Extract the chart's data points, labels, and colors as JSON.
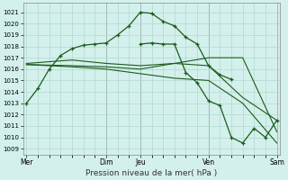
{
  "xlabel": "Pression niveau de la mer( hPa )",
  "bg_color": "#d4f0ec",
  "grid_color": "#b0d8d0",
  "line_color": "#1a5c1a",
  "yticks": [
    1009,
    1010,
    1011,
    1012,
    1013,
    1014,
    1015,
    1016,
    1017,
    1018,
    1019,
    1020,
    1021
  ],
  "ylim": [
    1008.5,
    1021.8
  ],
  "xlim": [
    -0.3,
    22.3
  ],
  "xtick_labels": [
    "Mer",
    "Dim",
    "Jeu",
    "Ven",
    "Sam"
  ],
  "xtick_positions": [
    0,
    7,
    10,
    16,
    22
  ],
  "vlines": [
    7,
    10,
    16,
    22
  ],
  "series": [
    {
      "x": [
        0,
        1,
        2,
        3,
        4,
        5,
        6,
        7,
        8,
        9,
        10,
        11,
        12,
        13,
        14,
        15,
        16,
        17,
        18
      ],
      "y": [
        1013.0,
        1014.3,
        1016.0,
        1017.2,
        1017.8,
        1018.1,
        1018.2,
        1018.3,
        1019.0,
        1019.8,
        1021.0,
        1020.9,
        1020.2,
        1019.8,
        1018.8,
        1018.2,
        1016.3,
        1015.5,
        1015.1
      ],
      "marker": "+"
    },
    {
      "x": [
        0,
        4,
        7,
        10,
        13,
        16,
        19,
        22
      ],
      "y": [
        1016.4,
        1016.3,
        1016.2,
        1016.0,
        1016.5,
        1017.0,
        1017.0,
        1010.5
      ],
      "marker": null
    },
    {
      "x": [
        0,
        4,
        7,
        10,
        13,
        16,
        19,
        22
      ],
      "y": [
        1016.4,
        1016.2,
        1016.0,
        1015.6,
        1015.2,
        1015.0,
        1013.0,
        1009.5
      ],
      "marker": null
    },
    {
      "x": [
        0,
        4,
        7,
        10,
        13,
        16,
        19,
        22
      ],
      "y": [
        1016.5,
        1016.8,
        1016.5,
        1016.3,
        1016.5,
        1016.3,
        1013.5,
        1011.5
      ],
      "marker": null
    },
    {
      "x": [
        10,
        11,
        12,
        13,
        14,
        15,
        16,
        17,
        18,
        19,
        20,
        21,
        22
      ],
      "y": [
        1018.2,
        1018.3,
        1018.2,
        1018.2,
        1015.7,
        1014.8,
        1013.2,
        1012.8,
        1010.0,
        1009.5,
        1010.8,
        1010.0,
        1011.5
      ],
      "marker": "+"
    }
  ]
}
